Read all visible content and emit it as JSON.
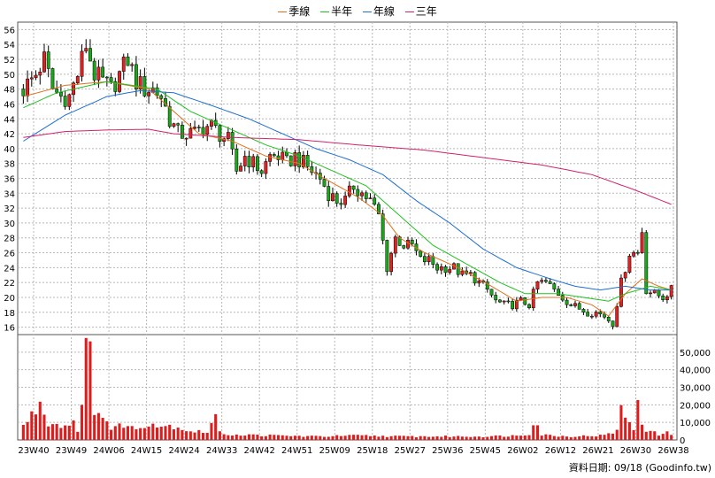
{
  "legend": {
    "items": [
      {
        "label": "季線",
        "color": "#e0701a"
      },
      {
        "label": "半年",
        "color": "#22c022"
      },
      {
        "label": "年線",
        "color": "#1f6fd0"
      },
      {
        "label": "三年",
        "color": "#d0226e"
      }
    ]
  },
  "footer": {
    "text": "資料日期: 09/18 (Goodinfo.tw)"
  },
  "chart_data": {
    "type": "candlestick+bar",
    "price_axis": {
      "ylim": [
        15,
        57
      ],
      "ticks": [
        16,
        18,
        20,
        22,
        24,
        26,
        28,
        30,
        32,
        34,
        36,
        38,
        40,
        42,
        44,
        46,
        48,
        50,
        52,
        54,
        56
      ]
    },
    "volume_axis": {
      "ylim": [
        0,
        60000
      ],
      "ticks": [
        "0",
        "10,000",
        "20,000",
        "30,000",
        "40,000",
        "50,000"
      ]
    },
    "x_labels": [
      "23W40",
      "23W49",
      "24W06",
      "24W15",
      "24W24",
      "24W33",
      "24W42",
      "24W51",
      "25W09",
      "25W18",
      "25W27",
      "25W36",
      "25W45",
      "26W02",
      "26W12",
      "26W21",
      "26W30",
      "26W38"
    ],
    "weeks": 156,
    "price_path": [
      [
        0,
        48
      ],
      [
        3,
        50
      ],
      [
        5,
        52
      ],
      [
        7,
        48
      ],
      [
        9,
        47
      ],
      [
        11,
        47
      ],
      [
        13,
        50
      ],
      [
        15,
        54
      ],
      [
        17,
        50
      ],
      [
        19,
        49
      ],
      [
        21,
        48
      ],
      [
        23,
        50
      ],
      [
        25,
        52
      ],
      [
        27,
        49
      ],
      [
        29,
        48
      ],
      [
        31,
        48
      ],
      [
        33,
        47
      ],
      [
        35,
        44
      ],
      [
        37,
        42
      ],
      [
        39,
        42
      ],
      [
        41,
        42
      ],
      [
        43,
        43
      ],
      [
        45,
        43
      ],
      [
        47,
        42
      ],
      [
        49,
        41
      ],
      [
        51,
        37
      ],
      [
        53,
        39
      ],
      [
        55,
        38
      ],
      [
        57,
        37
      ],
      [
        59,
        39
      ],
      [
        61,
        39
      ],
      [
        63,
        38
      ],
      [
        65,
        39
      ],
      [
        67,
        38
      ],
      [
        69,
        37
      ],
      [
        71,
        36
      ],
      [
        73,
        34
      ],
      [
        75,
        33
      ],
      [
        77,
        33
      ],
      [
        79,
        35
      ],
      [
        81,
        34
      ],
      [
        83,
        33
      ],
      [
        85,
        31
      ],
      [
        87,
        24
      ],
      [
        89,
        28
      ],
      [
        91,
        27
      ],
      [
        93,
        27
      ],
      [
        95,
        25
      ],
      [
        97,
        25
      ],
      [
        99,
        24
      ],
      [
        101,
        24
      ],
      [
        103,
        24
      ],
      [
        105,
        23
      ],
      [
        107,
        23
      ],
      [
        109,
        22
      ],
      [
        111,
        21
      ],
      [
        113,
        19.5
      ],
      [
        115,
        19
      ],
      [
        117,
        19
      ],
      [
        119,
        19.5
      ],
      [
        121,
        19
      ],
      [
        123,
        22
      ],
      [
        125,
        22
      ],
      [
        127,
        21
      ],
      [
        129,
        20
      ],
      [
        131,
        19
      ],
      [
        133,
        18.5
      ],
      [
        135,
        18
      ],
      [
        137,
        18
      ],
      [
        139,
        17.5
      ],
      [
        141,
        16.5
      ],
      [
        143,
        22
      ],
      [
        145,
        26
      ],
      [
        147,
        26
      ],
      [
        148,
        29
      ],
      [
        149,
        21
      ],
      [
        151,
        20.5
      ],
      [
        153,
        20
      ],
      [
        155,
        21
      ]
    ],
    "ma_series": [
      {
        "name": "季線",
        "color": "#e0701a",
        "points": [
          [
            0,
            47
          ],
          [
            10,
            48.5
          ],
          [
            20,
            49
          ],
          [
            30,
            48
          ],
          [
            36,
            45
          ],
          [
            42,
            42
          ],
          [
            50,
            41
          ],
          [
            58,
            39
          ],
          [
            66,
            38
          ],
          [
            72,
            36
          ],
          [
            80,
            33.5
          ],
          [
            86,
            31
          ],
          [
            90,
            28
          ],
          [
            96,
            26
          ],
          [
            104,
            24
          ],
          [
            112,
            21.5
          ],
          [
            118,
            19.5
          ],
          [
            124,
            20
          ],
          [
            130,
            20
          ],
          [
            136,
            19
          ],
          [
            140,
            17.5
          ],
          [
            144,
            20.5
          ],
          [
            148,
            22.5
          ],
          [
            152,
            21.5
          ],
          [
            155,
            21
          ]
        ]
      },
      {
        "name": "半年",
        "color": "#22c022",
        "points": [
          [
            0,
            45.5
          ],
          [
            8,
            47.5
          ],
          [
            20,
            49
          ],
          [
            32,
            48
          ],
          [
            40,
            45
          ],
          [
            48,
            43
          ],
          [
            58,
            40.5
          ],
          [
            66,
            39
          ],
          [
            74,
            37
          ],
          [
            82,
            35
          ],
          [
            90,
            31
          ],
          [
            98,
            27
          ],
          [
            106,
            24.5
          ],
          [
            114,
            22
          ],
          [
            120,
            20.5
          ],
          [
            128,
            20.5
          ],
          [
            134,
            20
          ],
          [
            140,
            19.5
          ],
          [
            144,
            20.5
          ],
          [
            150,
            21.5
          ],
          [
            155,
            21
          ]
        ]
      },
      {
        "name": "年線",
        "color": "#1f6fd0",
        "points": [
          [
            0,
            41
          ],
          [
            10,
            44.5
          ],
          [
            20,
            47
          ],
          [
            28,
            47.8
          ],
          [
            36,
            47.5
          ],
          [
            44,
            46
          ],
          [
            54,
            44
          ],
          [
            62,
            42
          ],
          [
            70,
            40
          ],
          [
            78,
            38.5
          ],
          [
            86,
            36.5
          ],
          [
            94,
            33
          ],
          [
            102,
            30
          ],
          [
            110,
            26.5
          ],
          [
            118,
            24
          ],
          [
            126,
            22.5
          ],
          [
            132,
            21.5
          ],
          [
            138,
            21
          ],
          [
            144,
            21.5
          ],
          [
            150,
            21
          ],
          [
            155,
            21
          ]
        ]
      },
      {
        "name": "三年",
        "color": "#d0226e",
        "points": [
          [
            0,
            41.5
          ],
          [
            10,
            42.3
          ],
          [
            20,
            42.5
          ],
          [
            30,
            42.6
          ],
          [
            36,
            42
          ],
          [
            50,
            41.5
          ],
          [
            66,
            41.2
          ],
          [
            80,
            40.5
          ],
          [
            96,
            39.8
          ],
          [
            110,
            38.8
          ],
          [
            124,
            37.8
          ],
          [
            136,
            36.5
          ],
          [
            146,
            34.5
          ],
          [
            155,
            32.5
          ]
        ]
      }
    ],
    "volume_profile": [
      [
        0,
        8000
      ],
      [
        2,
        14000
      ],
      [
        4,
        21000
      ],
      [
        6,
        10000
      ],
      [
        8,
        9000
      ],
      [
        10,
        8000
      ],
      [
        12,
        11000
      ],
      [
        13,
        5000
      ],
      [
        14,
        26000
      ],
      [
        15,
        54000
      ],
      [
        16,
        46000
      ],
      [
        17,
        12000
      ],
      [
        18,
        20000
      ],
      [
        19,
        15000
      ],
      [
        21,
        6000
      ],
      [
        24,
        9000
      ],
      [
        27,
        6000
      ],
      [
        30,
        10000
      ],
      [
        33,
        8000
      ],
      [
        36,
        8000
      ],
      [
        40,
        5000
      ],
      [
        44,
        4500
      ],
      [
        46,
        14000
      ],
      [
        47,
        4000
      ],
      [
        50,
        3000
      ],
      [
        60,
        2500
      ],
      [
        70,
        2000
      ],
      [
        80,
        2500
      ],
      [
        90,
        2000
      ],
      [
        100,
        2000
      ],
      [
        110,
        2000
      ],
      [
        118,
        2500
      ],
      [
        121,
        3500
      ],
      [
        122,
        11000
      ],
      [
        123,
        8000
      ],
      [
        124,
        3000
      ],
      [
        130,
        2000
      ],
      [
        138,
        2500
      ],
      [
        140,
        3500
      ],
      [
        141,
        3000
      ],
      [
        142,
        7000
      ],
      [
        143,
        22000
      ],
      [
        144,
        11000
      ],
      [
        145,
        9000
      ],
      [
        146,
        6000
      ],
      [
        147,
        24000
      ],
      [
        148,
        10000
      ],
      [
        149,
        6000
      ],
      [
        150,
        5000
      ],
      [
        152,
        3000
      ],
      [
        154,
        4000
      ],
      [
        155,
        3000
      ]
    ]
  }
}
